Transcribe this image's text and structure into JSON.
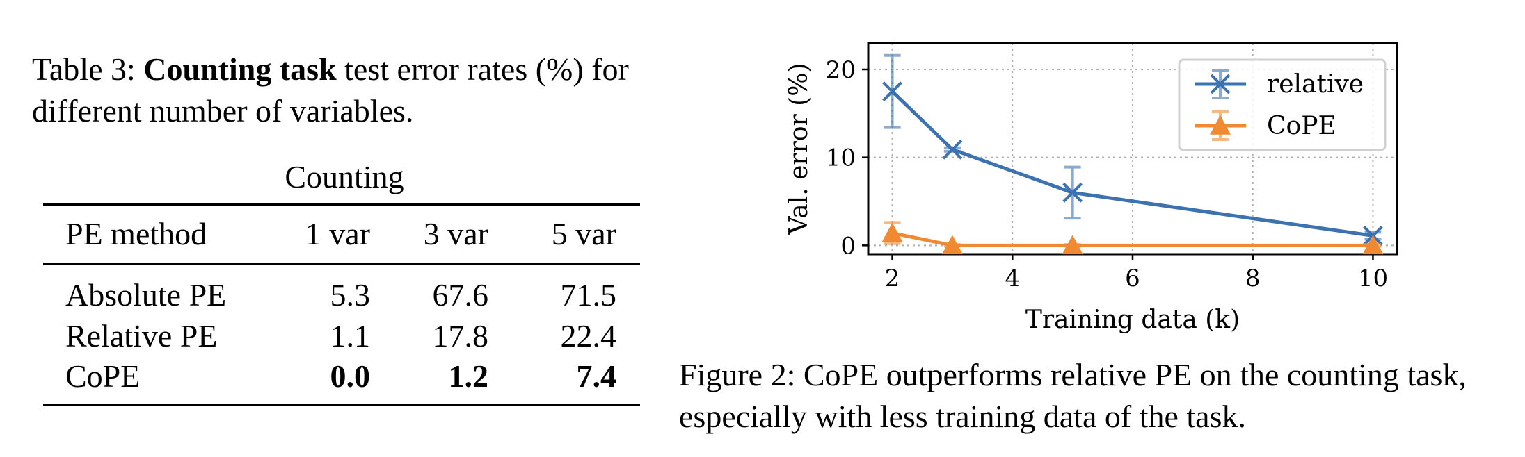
{
  "table": {
    "caption_prefix": "Table 3:",
    "caption_bold": "Counting task",
    "caption_rest": "test error rates (%) for different number of variables.",
    "group_header": "Counting",
    "columns": [
      "PE method",
      "1 var",
      "3 var",
      "5 var"
    ],
    "rows": [
      {
        "method": "Absolute PE",
        "v1": "5.3",
        "v3": "67.6",
        "v5": "71.5"
      },
      {
        "method": "Relative PE",
        "v1": "1.1",
        "v3": "17.8",
        "v5": "22.4"
      },
      {
        "method": "CoPE",
        "v1": "0.0",
        "v3": "1.2",
        "v5": "7.4"
      }
    ]
  },
  "figure": {
    "caption": "Figure 2: CoPE outperforms relative PE on the counting task, especially with less training data of the task."
  },
  "chart_data": {
    "type": "line",
    "xlabel": "Training data (k)",
    "ylabel": "Val. error (%)",
    "xlim": [
      1.6,
      10.4
    ],
    "ylim": [
      -1,
      23
    ],
    "xticks": [
      "2",
      "4",
      "6",
      "8",
      "10"
    ],
    "yticks": [
      "0",
      "10",
      "20"
    ],
    "grid": true,
    "legend_position": "top-right",
    "series": [
      {
        "name": "relative",
        "color": "#3d72b0",
        "marker": "x",
        "x": [
          2,
          3,
          5,
          10
        ],
        "y": [
          17.5,
          10.9,
          6.0,
          1.1
        ],
        "err": [
          4.1,
          0.2,
          2.9,
          0.4
        ]
      },
      {
        "name": "CoPE",
        "color": "#ef8a32",
        "marker": "triangle",
        "x": [
          2,
          3,
          5,
          10
        ],
        "y": [
          1.4,
          0.0,
          0.0,
          0.0
        ],
        "err": [
          1.2,
          0.1,
          0.1,
          0.1
        ]
      }
    ]
  }
}
